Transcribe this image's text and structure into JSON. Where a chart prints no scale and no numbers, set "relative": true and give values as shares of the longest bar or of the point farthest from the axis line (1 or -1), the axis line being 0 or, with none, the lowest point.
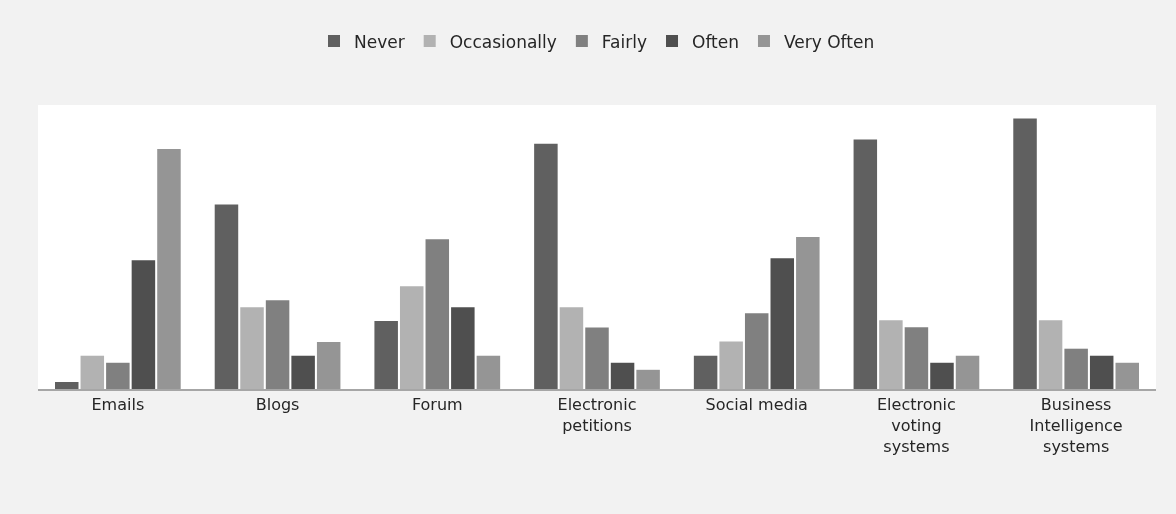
{
  "chart_data": {
    "type": "bar",
    "relative": true,
    "legend": "top",
    "categories": [
      "Emails",
      "Blogs",
      "Forum",
      "Electronic\npetitions",
      "Social media",
      "Electronic\nvoting\nsystems",
      "Business\nIntelligence\nsystems"
    ],
    "series": [
      {
        "name": "Never",
        "color": "#606060",
        "values": [
          0.026,
          0.682,
          0.251,
          0.907,
          0.123,
          0.922,
          1.0
        ]
      },
      {
        "name": "Occasionally",
        "color": "#b2b2b2",
        "values": [
          0.123,
          0.302,
          0.38,
          0.302,
          0.176,
          0.254,
          0.254
        ]
      },
      {
        "name": "Fairly",
        "color": "#808080",
        "values": [
          0.097,
          0.328,
          0.554,
          0.227,
          0.28,
          0.228,
          0.149
        ]
      },
      {
        "name": "Often",
        "color": "#4f4f4f",
        "values": [
          0.476,
          0.123,
          0.302,
          0.097,
          0.483,
          0.097,
          0.123
        ]
      },
      {
        "name": "Very Often",
        "color": "#959595",
        "values": [
          0.887,
          0.174,
          0.123,
          0.071,
          0.562,
          0.123,
          0.097
        ]
      }
    ]
  }
}
